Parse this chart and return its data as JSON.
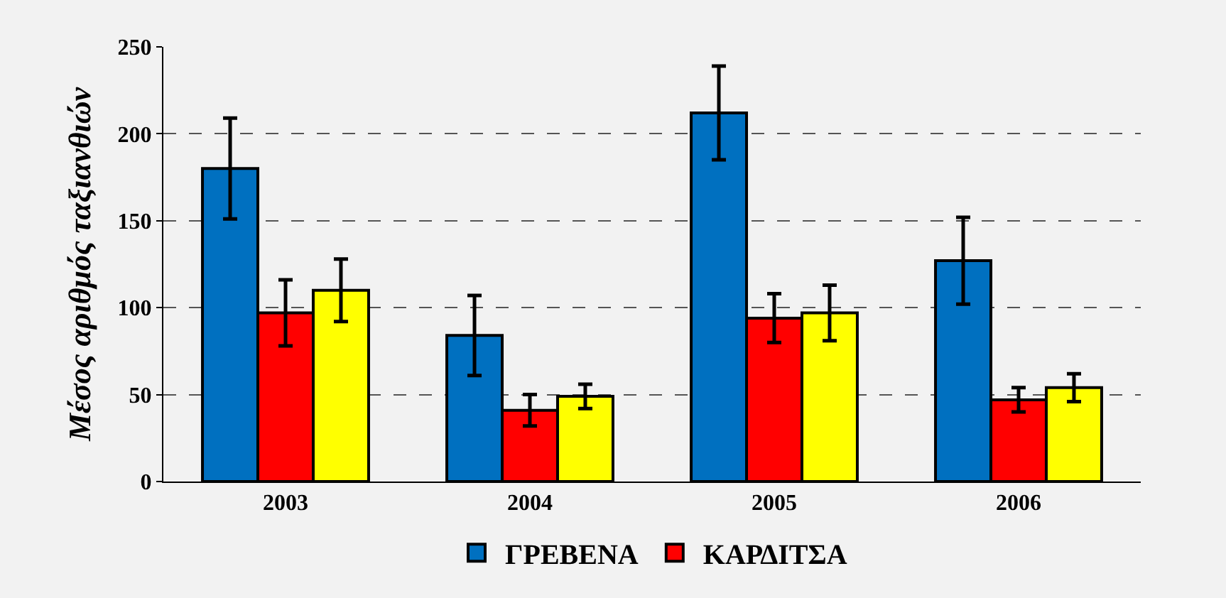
{
  "chart_data": {
    "type": "bar",
    "ylabel": "Μέσος αριθμός ταξιανθιών",
    "categories": [
      "2003",
      "2004",
      "2005",
      "2006"
    ],
    "series": [
      {
        "name": "ΓΡΕΒΕΝΑ",
        "color": "#0070c0",
        "values": [
          180,
          84,
          212,
          127
        ],
        "errors": [
          [
            151,
            209
          ],
          [
            61,
            107
          ],
          [
            185,
            239
          ],
          [
            102,
            152
          ]
        ]
      },
      {
        "name": "ΚΑΡΔΙΤΣΑ",
        "color": "#ff0000",
        "values": [
          97,
          41,
          94,
          47
        ],
        "errors": [
          [
            78,
            116
          ],
          [
            32,
            50
          ],
          [
            80,
            108
          ],
          [
            40,
            54
          ]
        ]
      },
      {
        "color": "#ffff00",
        "values": [
          110,
          49,
          97,
          54
        ],
        "errors": [
          [
            92,
            128
          ],
          [
            42,
            56
          ],
          [
            81,
            113
          ],
          [
            46,
            62
          ]
        ]
      }
    ],
    "ylim": [
      0,
      250
    ],
    "yticks": [
      0,
      50,
      100,
      150,
      200,
      250
    ],
    "grid": "y",
    "legend": "bottom"
  }
}
